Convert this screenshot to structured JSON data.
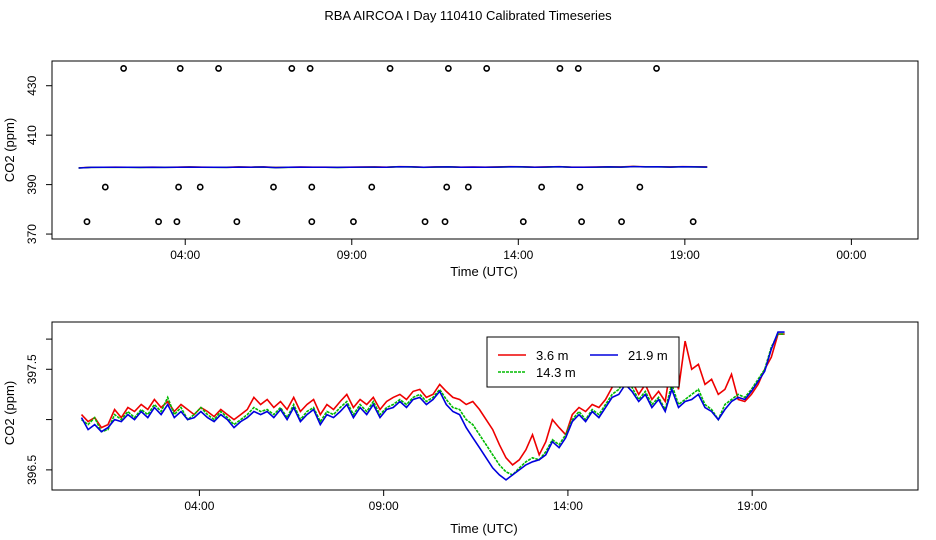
{
  "title": "RBA AIRCOA I  Day 110410  Calibrated Timeseries",
  "colors": {
    "s1": "#ee0000",
    "s2": "#00bb00",
    "s3": "#0000dd",
    "frame": "#000000"
  },
  "chart_data": [
    {
      "type": "scatter+line",
      "title": "",
      "xlabel": "Time (UTC)",
      "ylabel": "CO2 (ppm)",
      "xlim": [
        0,
        26
      ],
      "ylim": [
        368,
        440
      ],
      "x_ticks": [
        {
          "v": 4,
          "label": "04:00"
        },
        {
          "v": 9,
          "label": "09:00"
        },
        {
          "v": 14,
          "label": "14:00"
        },
        {
          "v": 19,
          "label": "19:00"
        },
        {
          "v": 24,
          "label": "00:00"
        }
      ],
      "y_ticks": [
        {
          "v": 370,
          "label": "370"
        },
        {
          "v": 390,
          "label": "390"
        },
        {
          "v": 410,
          "label": "410"
        },
        {
          "v": 430,
          "label": "430"
        }
      ],
      "calibration_points": [
        {
          "x": 2.15,
          "y": 437
        },
        {
          "x": 3.85,
          "y": 437
        },
        {
          "x": 5.0,
          "y": 437
        },
        {
          "x": 7.2,
          "y": 437
        },
        {
          "x": 7.75,
          "y": 437
        },
        {
          "x": 10.15,
          "y": 437
        },
        {
          "x": 11.9,
          "y": 437
        },
        {
          "x": 13.05,
          "y": 437
        },
        {
          "x": 15.25,
          "y": 437
        },
        {
          "x": 15.8,
          "y": 437
        },
        {
          "x": 18.15,
          "y": 437
        },
        {
          "x": 1.6,
          "y": 389
        },
        {
          "x": 3.8,
          "y": 389
        },
        {
          "x": 4.45,
          "y": 389
        },
        {
          "x": 6.65,
          "y": 389
        },
        {
          "x": 7.8,
          "y": 389
        },
        {
          "x": 9.6,
          "y": 389
        },
        {
          "x": 11.85,
          "y": 389
        },
        {
          "x": 12.5,
          "y": 389
        },
        {
          "x": 14.7,
          "y": 389
        },
        {
          "x": 15.85,
          "y": 389
        },
        {
          "x": 17.65,
          "y": 389
        },
        {
          "x": 1.05,
          "y": 375
        },
        {
          "x": 3.2,
          "y": 375
        },
        {
          "x": 3.75,
          "y": 375
        },
        {
          "x": 5.55,
          "y": 375
        },
        {
          "x": 7.8,
          "y": 375
        },
        {
          "x": 9.05,
          "y": 375
        },
        {
          "x": 11.2,
          "y": 375
        },
        {
          "x": 11.8,
          "y": 375
        },
        {
          "x": 14.15,
          "y": 375
        },
        {
          "x": 15.9,
          "y": 375
        },
        {
          "x": 17.1,
          "y": 375
        },
        {
          "x": 19.25,
          "y": 375
        }
      ],
      "series_start": 0.8,
      "series_step": 0.1,
      "series": [
        {
          "name": "3.6 m",
          "values": [
            396.72,
            396.98,
            397.0,
            397.05,
            397.0,
            396.95,
            397.05,
            396.98,
            397.02,
            397.1,
            397.05,
            397.0,
            396.98,
            397.1,
            397.05,
            397.12,
            396.9,
            397.0,
            397.08,
            397.05,
            397.02,
            396.95,
            397.05,
            397.08,
            397.1,
            397.02,
            397.25,
            397.15,
            397.0,
            397.12,
            397.18,
            397.02,
            397.08,
            397.05,
            397.1,
            397.22,
            397.15,
            397.05,
            397.12,
            397.25,
            397.02,
            397.05,
            397.08,
            397.15,
            397.1,
            397.3,
            397.18,
            397.2,
            397.1,
            397.25,
            397.15,
            397.1
          ]
        }
      ]
    },
    {
      "type": "line",
      "title": "",
      "xlabel": "Time (UTC)",
      "ylabel": "CO2 (ppm)",
      "xlim": [
        0.0,
        23.5
      ],
      "ylim": [
        396.3,
        397.97
      ],
      "x_ticks": [
        {
          "v": 4,
          "label": "04:00"
        },
        {
          "v": 9,
          "label": "09:00"
        },
        {
          "v": 14,
          "label": "14:00"
        },
        {
          "v": 19,
          "label": "19:00"
        }
      ],
      "y_ticks": [
        {
          "v": 396.5,
          "label": "396.5"
        },
        {
          "v": 397.0,
          "label": ""
        },
        {
          "v": 397.5,
          "label": "397.5"
        },
        {
          "v": 397.8,
          "label": ""
        }
      ],
      "x_start": 0.8,
      "x_step": 0.18,
      "legend": {
        "position": "top-center",
        "items": [
          "3.6 m",
          "21.9 m",
          "14.3 m"
        ]
      },
      "series": [
        {
          "name": "3.6 m",
          "color": "#ee0000",
          "values": [
            397.05,
            396.98,
            397.02,
            396.92,
            396.95,
            397.1,
            397.02,
            397.12,
            397.08,
            397.15,
            397.1,
            397.2,
            397.12,
            397.18,
            397.08,
            397.15,
            397.1,
            397.05,
            397.12,
            397.08,
            397.03,
            397.1,
            397.05,
            397.0,
            397.05,
            397.1,
            397.22,
            397.15,
            397.2,
            397.12,
            397.18,
            397.1,
            397.22,
            397.08,
            397.15,
            397.2,
            397.05,
            397.15,
            397.1,
            397.18,
            397.25,
            397.12,
            397.2,
            397.15,
            397.22,
            397.1,
            397.18,
            397.22,
            397.25,
            397.2,
            397.28,
            397.3,
            397.22,
            397.25,
            397.35,
            397.28,
            397.22,
            397.2,
            397.15,
            397.18,
            397.1,
            397.0,
            396.9,
            396.75,
            396.62,
            396.55,
            396.6,
            396.7,
            396.85,
            396.65,
            396.78,
            397.0,
            396.92,
            396.85,
            397.05,
            397.12,
            397.08,
            397.15,
            397.12,
            397.2,
            397.32,
            397.42,
            397.45,
            397.38,
            397.25,
            397.35,
            397.2,
            397.28,
            397.18,
            397.6,
            397.3,
            397.78,
            397.5,
            397.55,
            397.35,
            397.4,
            397.25,
            397.3,
            397.45,
            397.2,
            397.18,
            397.25,
            397.35,
            397.5,
            397.62,
            397.85,
            397.85
          ]
        },
        {
          "name": "14.3 m",
          "color": "#00bb00",
          "values": [
            397.0,
            396.95,
            397.02,
            396.88,
            396.9,
            397.05,
            397.0,
            397.08,
            397.02,
            397.1,
            397.05,
            397.15,
            397.08,
            397.22,
            397.05,
            397.12,
            397.0,
            397.05,
            397.12,
            397.05,
            397.0,
            397.08,
            397.02,
            396.95,
            397.0,
            397.05,
            397.12,
            397.08,
            397.1,
            397.05,
            397.12,
            397.02,
            397.15,
            397.0,
            397.08,
            397.12,
            396.98,
            397.08,
            397.05,
            397.12,
            397.18,
            397.05,
            397.15,
            397.08,
            397.18,
            397.05,
            397.12,
            397.15,
            397.2,
            397.15,
            397.22,
            397.25,
            397.18,
            397.22,
            397.3,
            397.2,
            397.12,
            397.1,
            397.0,
            396.95,
            396.85,
            396.75,
            396.65,
            396.55,
            396.48,
            396.45,
            396.52,
            396.58,
            396.62,
            396.6,
            396.68,
            396.8,
            396.75,
            396.85,
            397.0,
            397.08,
            397.0,
            397.1,
            397.05,
            397.15,
            397.25,
            397.3,
            397.4,
            397.32,
            397.2,
            397.28,
            397.15,
            397.22,
            397.1,
            397.35,
            397.15,
            397.2,
            397.25,
            397.3,
            397.15,
            397.1,
            397.0,
            397.15,
            397.2,
            397.25,
            397.22,
            397.3,
            397.4,
            397.5,
            397.72,
            397.85,
            397.85
          ]
        },
        {
          "name": "21.9 m",
          "color": "#0000dd",
          "values": [
            397.02,
            396.9,
            396.95,
            396.88,
            396.92,
            397.0,
            396.98,
            397.05,
            397.0,
            397.08,
            397.02,
            397.12,
            397.05,
            397.15,
            397.02,
            397.08,
            397.0,
            397.02,
            397.08,
            397.02,
            396.98,
            397.05,
            397.0,
            396.92,
            396.98,
            397.02,
            397.08,
            397.05,
            397.08,
            397.02,
            397.1,
            397.0,
            397.12,
            396.98,
            397.05,
            397.1,
            396.95,
            397.05,
            397.02,
            397.08,
            397.15,
            397.02,
            397.12,
            397.05,
            397.15,
            397.02,
            397.1,
            397.12,
            397.18,
            397.12,
            397.2,
            397.22,
            397.15,
            397.2,
            397.28,
            397.15,
            397.08,
            397.05,
            396.92,
            396.82,
            396.72,
            396.62,
            396.52,
            396.45,
            396.4,
            396.45,
            396.5,
            396.55,
            396.58,
            396.6,
            396.65,
            396.78,
            396.72,
            396.82,
            396.98,
            397.05,
            396.98,
            397.08,
            397.02,
            397.12,
            397.22,
            397.25,
            397.35,
            397.28,
            397.18,
            397.25,
            397.12,
            397.2,
            397.08,
            397.3,
            397.12,
            397.18,
            397.2,
            397.25,
            397.12,
            397.08,
            397.0,
            397.1,
            397.18,
            397.22,
            397.2,
            397.28,
            397.38,
            397.48,
            397.7,
            397.87,
            397.87
          ]
        }
      ]
    }
  ]
}
